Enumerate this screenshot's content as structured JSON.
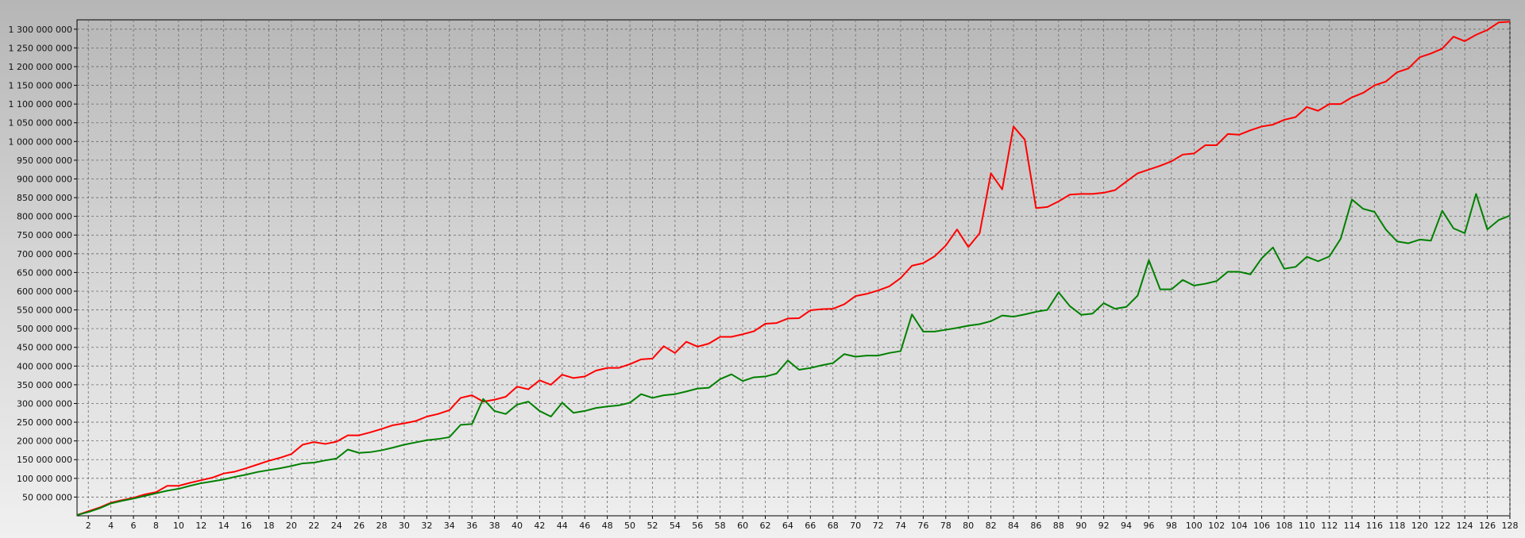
{
  "chart_data": {
    "type": "line",
    "title": "",
    "xlabel": "",
    "ylabel": "",
    "grid": true,
    "legend": "none",
    "xlim": [
      1,
      128
    ],
    "ylim": [
      0,
      1325000000
    ],
    "x_ticks": [
      2,
      4,
      6,
      8,
      10,
      12,
      14,
      16,
      18,
      20,
      22,
      24,
      26,
      28,
      30,
      32,
      34,
      36,
      38,
      40,
      42,
      44,
      46,
      48,
      50,
      52,
      54,
      56,
      58,
      60,
      62,
      64,
      66,
      68,
      70,
      72,
      74,
      76,
      78,
      80,
      82,
      84,
      86,
      88,
      90,
      92,
      94,
      96,
      98,
      100,
      102,
      104,
      106,
      108,
      110,
      112,
      114,
      116,
      118,
      120,
      122,
      124,
      126,
      128
    ],
    "y_ticks": [
      50000000,
      100000000,
      150000000,
      200000000,
      250000000,
      300000000,
      350000000,
      400000000,
      450000000,
      500000000,
      550000000,
      600000000,
      650000000,
      700000000,
      750000000,
      800000000,
      850000000,
      900000000,
      950000000,
      1000000000,
      1050000000,
      1100000000,
      1150000000,
      1200000000,
      1250000000,
      1300000000
    ],
    "y_tick_labels": [
      "50 000 000",
      "100 000 000",
      "150 000 000",
      "200 000 000",
      "250 000 000",
      "300 000 000",
      "350 000 000",
      "400 000 000",
      "450 000 000",
      "500 000 000",
      "550 000 000",
      "600 000 000",
      "650 000 000",
      "700 000 000",
      "750 000 000",
      "800 000 000",
      "850 000 000",
      "900 000 000",
      "950 000 000",
      "1 000 000 000",
      "1 050 000 000",
      "1 100 000 000",
      "1 150 000 000",
      "1 200 000 000",
      "1 250 000 000",
      "1 300 000 000"
    ],
    "series": [
      {
        "color": "#ff0000",
        "points": [
          [
            1,
            2000000
          ],
          [
            2,
            12000000
          ],
          [
            3,
            22000000
          ],
          [
            4,
            35000000
          ],
          [
            5,
            42000000
          ],
          [
            6,
            48000000
          ],
          [
            7,
            57000000
          ],
          [
            8,
            63000000
          ],
          [
            9,
            80000000
          ],
          [
            10,
            80000000
          ],
          [
            11,
            88000000
          ],
          [
            12,
            95000000
          ],
          [
            13,
            102000000
          ],
          [
            14,
            113000000
          ],
          [
            15,
            118000000
          ],
          [
            16,
            127000000
          ],
          [
            17,
            137000000
          ],
          [
            18,
            147000000
          ],
          [
            19,
            155000000
          ],
          [
            20,
            165000000
          ],
          [
            21,
            190000000
          ],
          [
            22,
            197000000
          ],
          [
            23,
            192000000
          ],
          [
            24,
            198000000
          ],
          [
            25,
            215000000
          ],
          [
            26,
            215000000
          ],
          [
            27,
            223000000
          ],
          [
            28,
            232000000
          ],
          [
            29,
            242000000
          ],
          [
            30,
            247000000
          ],
          [
            31,
            253000000
          ],
          [
            32,
            265000000
          ],
          [
            33,
            272000000
          ],
          [
            34,
            282000000
          ],
          [
            35,
            315000000
          ],
          [
            36,
            322000000
          ],
          [
            37,
            305000000
          ],
          [
            38,
            310000000
          ],
          [
            39,
            318000000
          ],
          [
            40,
            345000000
          ],
          [
            41,
            338000000
          ],
          [
            42,
            362000000
          ],
          [
            43,
            350000000
          ],
          [
            44,
            377000000
          ],
          [
            45,
            368000000
          ],
          [
            46,
            372000000
          ],
          [
            47,
            388000000
          ],
          [
            48,
            395000000
          ],
          [
            49,
            395000000
          ],
          [
            50,
            405000000
          ],
          [
            51,
            418000000
          ],
          [
            52,
            420000000
          ],
          [
            53,
            453000000
          ],
          [
            54,
            435000000
          ],
          [
            55,
            465000000
          ],
          [
            56,
            452000000
          ],
          [
            57,
            460000000
          ],
          [
            58,
            478000000
          ],
          [
            59,
            478000000
          ],
          [
            60,
            485000000
          ],
          [
            61,
            493000000
          ],
          [
            62,
            513000000
          ],
          [
            63,
            515000000
          ],
          [
            64,
            527000000
          ],
          [
            65,
            528000000
          ],
          [
            66,
            549000000
          ],
          [
            67,
            552000000
          ],
          [
            68,
            553000000
          ],
          [
            69,
            565000000
          ],
          [
            70,
            587000000
          ],
          [
            71,
            593000000
          ],
          [
            72,
            602000000
          ],
          [
            73,
            613000000
          ],
          [
            74,
            635000000
          ],
          [
            75,
            668000000
          ],
          [
            76,
            675000000
          ],
          [
            77,
            693000000
          ],
          [
            78,
            722000000
          ],
          [
            79,
            765000000
          ],
          [
            80,
            718000000
          ],
          [
            81,
            755000000
          ],
          [
            82,
            915000000
          ],
          [
            83,
            872000000
          ],
          [
            84,
            1040000000
          ],
          [
            85,
            1005000000
          ],
          [
            86,
            822000000
          ],
          [
            87,
            825000000
          ],
          [
            88,
            840000000
          ],
          [
            89,
            858000000
          ],
          [
            90,
            860000000
          ],
          [
            91,
            860000000
          ],
          [
            92,
            863000000
          ],
          [
            93,
            870000000
          ],
          [
            94,
            893000000
          ],
          [
            95,
            915000000
          ],
          [
            96,
            925000000
          ],
          [
            97,
            935000000
          ],
          [
            98,
            947000000
          ],
          [
            99,
            965000000
          ],
          [
            100,
            968000000
          ],
          [
            101,
            990000000
          ],
          [
            102,
            990000000
          ],
          [
            103,
            1020000000
          ],
          [
            104,
            1018000000
          ],
          [
            105,
            1030000000
          ],
          [
            106,
            1040000000
          ],
          [
            107,
            1045000000
          ],
          [
            108,
            1058000000
          ],
          [
            109,
            1065000000
          ],
          [
            110,
            1092000000
          ],
          [
            111,
            1082000000
          ],
          [
            112,
            1100000000
          ],
          [
            113,
            1100000000
          ],
          [
            114,
            1118000000
          ],
          [
            115,
            1130000000
          ],
          [
            116,
            1150000000
          ],
          [
            117,
            1160000000
          ],
          [
            118,
            1185000000
          ],
          [
            119,
            1195000000
          ],
          [
            120,
            1225000000
          ],
          [
            121,
            1235000000
          ],
          [
            122,
            1248000000
          ],
          [
            123,
            1280000000
          ],
          [
            124,
            1268000000
          ],
          [
            125,
            1285000000
          ],
          [
            126,
            1298000000
          ],
          [
            127,
            1318000000
          ],
          [
            128,
            1320000000
          ]
        ]
      },
      {
        "color": "#008000",
        "points": [
          [
            1,
            2000000
          ],
          [
            2,
            10000000
          ],
          [
            3,
            20000000
          ],
          [
            4,
            33000000
          ],
          [
            5,
            40000000
          ],
          [
            6,
            46000000
          ],
          [
            7,
            53000000
          ],
          [
            8,
            60000000
          ],
          [
            9,
            67000000
          ],
          [
            10,
            72000000
          ],
          [
            11,
            80000000
          ],
          [
            12,
            87000000
          ],
          [
            13,
            92000000
          ],
          [
            14,
            97000000
          ],
          [
            15,
            104000000
          ],
          [
            16,
            110000000
          ],
          [
            17,
            117000000
          ],
          [
            18,
            122000000
          ],
          [
            19,
            127000000
          ],
          [
            20,
            133000000
          ],
          [
            21,
            140000000
          ],
          [
            22,
            142000000
          ],
          [
            23,
            148000000
          ],
          [
            24,
            153000000
          ],
          [
            25,
            177000000
          ],
          [
            26,
            168000000
          ],
          [
            27,
            170000000
          ],
          [
            28,
            175000000
          ],
          [
            29,
            182000000
          ],
          [
            30,
            190000000
          ],
          [
            31,
            196000000
          ],
          [
            32,
            202000000
          ],
          [
            33,
            205000000
          ],
          [
            34,
            210000000
          ],
          [
            35,
            243000000
          ],
          [
            36,
            245000000
          ],
          [
            37,
            312000000
          ],
          [
            38,
            280000000
          ],
          [
            39,
            272000000
          ],
          [
            40,
            297000000
          ],
          [
            41,
            305000000
          ],
          [
            42,
            280000000
          ],
          [
            43,
            265000000
          ],
          [
            44,
            302000000
          ],
          [
            45,
            275000000
          ],
          [
            46,
            280000000
          ],
          [
            47,
            288000000
          ],
          [
            48,
            292000000
          ],
          [
            49,
            295000000
          ],
          [
            50,
            302000000
          ],
          [
            51,
            325000000
          ],
          [
            52,
            315000000
          ],
          [
            53,
            322000000
          ],
          [
            54,
            325000000
          ],
          [
            55,
            332000000
          ],
          [
            56,
            340000000
          ],
          [
            57,
            342000000
          ],
          [
            58,
            365000000
          ],
          [
            59,
            378000000
          ],
          [
            60,
            360000000
          ],
          [
            61,
            370000000
          ],
          [
            62,
            372000000
          ],
          [
            63,
            380000000
          ],
          [
            64,
            415000000
          ],
          [
            65,
            390000000
          ],
          [
            66,
            395000000
          ],
          [
            67,
            402000000
          ],
          [
            68,
            408000000
          ],
          [
            69,
            432000000
          ],
          [
            70,
            425000000
          ],
          [
            71,
            428000000
          ],
          [
            72,
            428000000
          ],
          [
            73,
            435000000
          ],
          [
            74,
            440000000
          ],
          [
            75,
            538000000
          ],
          [
            76,
            492000000
          ],
          [
            77,
            492000000
          ],
          [
            78,
            497000000
          ],
          [
            79,
            502000000
          ],
          [
            80,
            508000000
          ],
          [
            81,
            512000000
          ],
          [
            82,
            520000000
          ],
          [
            83,
            535000000
          ],
          [
            84,
            532000000
          ],
          [
            85,
            538000000
          ],
          [
            86,
            545000000
          ],
          [
            87,
            550000000
          ],
          [
            88,
            597000000
          ],
          [
            89,
            560000000
          ],
          [
            90,
            537000000
          ],
          [
            91,
            540000000
          ],
          [
            92,
            568000000
          ],
          [
            93,
            553000000
          ],
          [
            94,
            558000000
          ],
          [
            95,
            588000000
          ],
          [
            96,
            683000000
          ],
          [
            97,
            605000000
          ],
          [
            98,
            605000000
          ],
          [
            99,
            630000000
          ],
          [
            100,
            615000000
          ],
          [
            101,
            620000000
          ],
          [
            102,
            627000000
          ],
          [
            103,
            652000000
          ],
          [
            104,
            652000000
          ],
          [
            105,
            645000000
          ],
          [
            106,
            688000000
          ],
          [
            107,
            717000000
          ],
          [
            108,
            660000000
          ],
          [
            109,
            665000000
          ],
          [
            110,
            692000000
          ],
          [
            111,
            680000000
          ],
          [
            112,
            693000000
          ],
          [
            113,
            740000000
          ],
          [
            114,
            845000000
          ],
          [
            115,
            820000000
          ],
          [
            116,
            812000000
          ],
          [
            117,
            765000000
          ],
          [
            118,
            733000000
          ],
          [
            119,
            728000000
          ],
          [
            120,
            738000000
          ],
          [
            121,
            735000000
          ],
          [
            122,
            815000000
          ],
          [
            123,
            768000000
          ],
          [
            124,
            755000000
          ],
          [
            125,
            860000000
          ],
          [
            126,
            765000000
          ],
          [
            127,
            790000000
          ],
          [
            128,
            802000000
          ]
        ]
      }
    ]
  }
}
